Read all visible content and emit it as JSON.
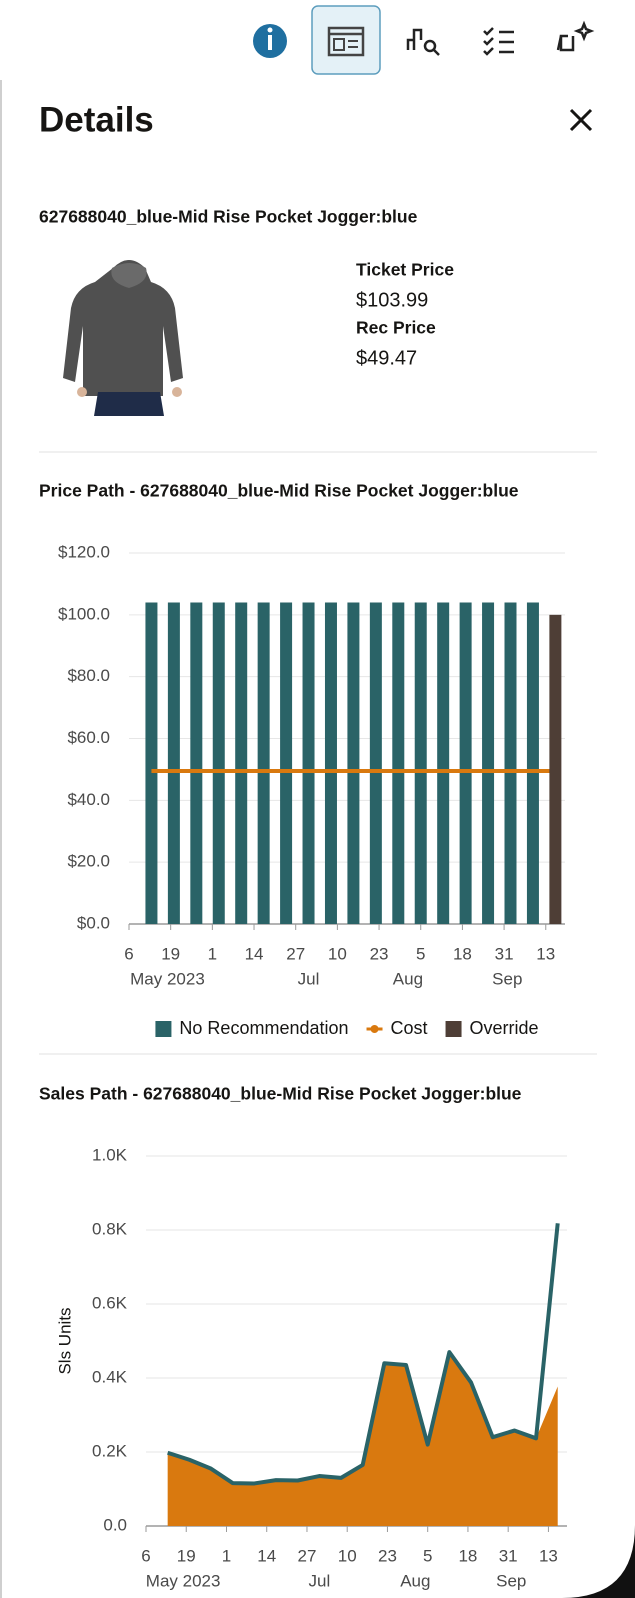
{
  "header": {
    "title": "Details"
  },
  "product": {
    "name": "627688040_blue-Mid Rise Pocket Jogger:blue",
    "fields": [
      {
        "label": "Ticket Price",
        "value": "$103.99"
      },
      {
        "label": "Rec Price",
        "value": "$49.47"
      }
    ]
  },
  "chart_data": [
    {
      "type": "bar",
      "title": "Price Path  -  627688040_blue-Mid Rise Pocket Jogger:blue",
      "x": [
        "2023-05-13",
        "2023-05-20",
        "2023-05-27",
        "2023-06-03",
        "2023-06-10",
        "2023-06-17",
        "2023-06-24",
        "2023-07-01",
        "2023-07-08",
        "2023-07-15",
        "2023-07-22",
        "2023-07-29",
        "2023-08-05",
        "2023-08-12",
        "2023-08-19",
        "2023-08-26",
        "2023-09-02",
        "2023-09-09",
        "2023-09-16"
      ],
      "series": [
        {
          "name": "No Recommendation",
          "type": "bar",
          "color": "#2a6367",
          "values": [
            103.99,
            103.99,
            103.99,
            103.99,
            103.99,
            103.99,
            103.99,
            103.99,
            103.99,
            103.99,
            103.99,
            103.99,
            103.99,
            103.99,
            103.99,
            103.99,
            103.99,
            103.99,
            null
          ]
        },
        {
          "name": "Cost",
          "type": "line",
          "color": "#d9790f",
          "values": [
            49.47,
            49.47,
            49.47,
            49.47,
            49.47,
            49.47,
            49.47,
            49.47,
            49.47,
            49.47,
            49.47,
            49.47,
            49.47,
            49.47,
            49.47,
            49.47,
            49.47,
            49.47,
            49.47
          ]
        },
        {
          "name": "Override",
          "type": "bar",
          "color": "#4e3e36",
          "values": [
            null,
            null,
            null,
            null,
            null,
            null,
            null,
            null,
            null,
            null,
            null,
            null,
            null,
            null,
            null,
            null,
            null,
            null,
            100
          ]
        }
      ],
      "xlim": [
        "2023-05-06",
        "2023-09-19"
      ],
      "xticks": [
        {
          "value": "2023-05-06",
          "label": "6"
        },
        {
          "value": "2023-05-19",
          "label": "19"
        },
        {
          "value": "2023-06-01",
          "label": "1"
        },
        {
          "value": "2023-06-14",
          "label": "14"
        },
        {
          "value": "2023-06-27",
          "label": "27"
        },
        {
          "value": "2023-07-10",
          "label": "10"
        },
        {
          "value": "2023-07-23",
          "label": "23"
        },
        {
          "value": "2023-08-05",
          "label": "5"
        },
        {
          "value": "2023-08-18",
          "label": "18"
        },
        {
          "value": "2023-08-31",
          "label": "31"
        },
        {
          "value": "2023-09-13",
          "label": "13"
        }
      ],
      "x_group_labels": [
        {
          "value": "2023-05-18",
          "label": "May 2023"
        },
        {
          "value": "2023-07-01",
          "label": "Jul"
        },
        {
          "value": "2023-08-01",
          "label": "Aug"
        },
        {
          "value": "2023-09-01",
          "label": "Sep"
        }
      ],
      "ylim": [
        0,
        120
      ],
      "yticks": [
        {
          "value": 0,
          "label": "$0.0"
        },
        {
          "value": 20,
          "label": "$20.0"
        },
        {
          "value": 40,
          "label": "$40.0"
        },
        {
          "value": 60,
          "label": "$60.0"
        },
        {
          "value": 80,
          "label": "$80.0"
        },
        {
          "value": 100,
          "label": "$100.0"
        },
        {
          "value": 120,
          "label": "$120.0"
        }
      ],
      "grid": true,
      "legend": "bottom"
    },
    {
      "type": "line",
      "title": "Sales Path  -  627688040_blue-Mid Rise Pocket Jogger:blue",
      "y_label": "Sls Units",
      "x": [
        "2023-05-13",
        "2023-05-20",
        "2023-05-27",
        "2023-06-03",
        "2023-06-10",
        "2023-06-17",
        "2023-06-24",
        "2023-07-01",
        "2023-07-08",
        "2023-07-15",
        "2023-07-22",
        "2023-07-29",
        "2023-08-05",
        "2023-08-12",
        "2023-08-19",
        "2023-08-26",
        "2023-09-02",
        "2023-09-09",
        "2023-09-16"
      ],
      "series": [
        {
          "type": "area",
          "color": "#d9790f",
          "values": [
            198,
            179,
            155,
            116,
            115,
            124,
            123,
            135,
            130,
            165,
            440,
            435,
            220,
            470,
            388,
            240,
            258,
            237,
            377
          ]
        },
        {
          "type": "line",
          "color": "#2a6367",
          "values": [
            198,
            179,
            155,
            116,
            115,
            124,
            123,
            135,
            130,
            165,
            440,
            435,
            220,
            470,
            388,
            240,
            258,
            237,
            818
          ]
        }
      ],
      "xlim": [
        "2023-05-06",
        "2023-09-19"
      ],
      "xticks": [
        {
          "value": "2023-05-06",
          "label": "6"
        },
        {
          "value": "2023-05-19",
          "label": "19"
        },
        {
          "value": "2023-06-01",
          "label": "1"
        },
        {
          "value": "2023-06-14",
          "label": "14"
        },
        {
          "value": "2023-06-27",
          "label": "27"
        },
        {
          "value": "2023-07-10",
          "label": "10"
        },
        {
          "value": "2023-07-23",
          "label": "23"
        },
        {
          "value": "2023-08-05",
          "label": "5"
        },
        {
          "value": "2023-08-18",
          "label": "18"
        },
        {
          "value": "2023-08-31",
          "label": "31"
        },
        {
          "value": "2023-09-13",
          "label": "13"
        }
      ],
      "x_group_labels": [
        {
          "value": "2023-05-18",
          "label": "May 2023"
        },
        {
          "value": "2023-07-01",
          "label": "Jul"
        },
        {
          "value": "2023-08-01",
          "label": "Aug"
        },
        {
          "value": "2023-09-01",
          "label": "Sep"
        }
      ],
      "ylim": [
        0,
        1000
      ],
      "yticks": [
        {
          "value": 0,
          "label": "0.0"
        },
        {
          "value": 200,
          "label": "0.2K"
        },
        {
          "value": 400,
          "label": "0.4K"
        },
        {
          "value": 600,
          "label": "0.6K"
        },
        {
          "value": 800,
          "label": "0.8K"
        },
        {
          "value": 1000,
          "label": "1.0K"
        }
      ],
      "grid": true
    }
  ]
}
